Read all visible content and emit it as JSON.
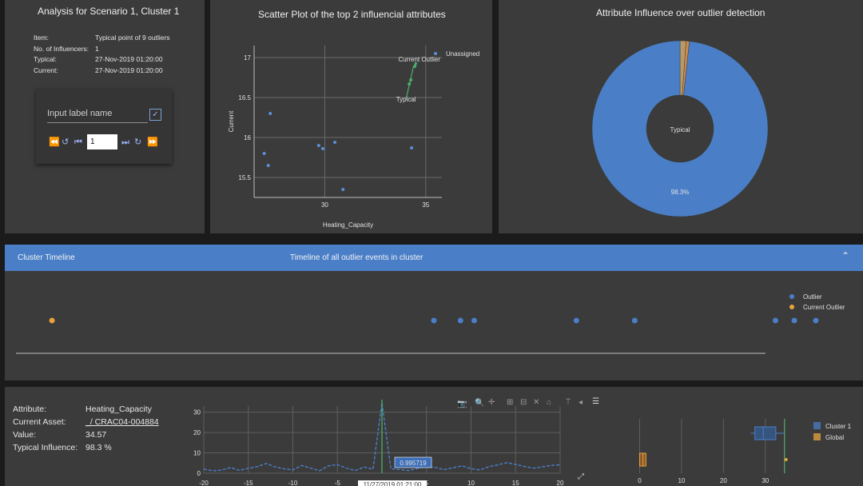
{
  "info_panel": {
    "title": "Analysis for Scenario 1, Cluster 1",
    "rows": [
      {
        "label": "Item:",
        "value": "Typical point of 9 outliers"
      },
      {
        "label": "No. of Influencers:",
        "value": "1"
      },
      {
        "label": "Typical:",
        "value": "27-Nov-2019 01:20:00"
      },
      {
        "label": "Current:",
        "value": "27-Nov-2019 01:20:00"
      }
    ],
    "label_input_placeholder": "Input label name",
    "page_input_value": "1"
  },
  "scatter": {
    "title": "Scatter Plot of the top 2 influencial attributes",
    "chart_data": {
      "type": "scatter",
      "title": "Scatter Plot of the top 2 influencial attributes",
      "xlabel": "Heating_Capacity",
      "ylabel": "Current",
      "xlim": [
        26.5,
        35.8
      ],
      "ylim": [
        15.25,
        17.15
      ],
      "xticks": [
        "30",
        "35"
      ],
      "yticks": [
        "15.5",
        "16",
        "16.5",
        "17"
      ],
      "legend_position": "top-right",
      "series": [
        {
          "name": "Unassigned",
          "color": "#5a8fd6",
          "x": [
            27.0,
            27.2,
            27.3,
            29.7,
            29.9,
            30.5,
            30.9,
            34.3
          ],
          "y": [
            15.8,
            15.65,
            16.3,
            15.9,
            15.86,
            15.94,
            15.35,
            15.87
          ]
        }
      ],
      "annotations": [
        {
          "text": "Current Outlier",
          "x": 34.6,
          "y": 16.97
        },
        {
          "text": "Typical",
          "x": 34.5,
          "y": 16.5
        }
      ]
    }
  },
  "donut": {
    "title": "Attribute Influence over outlier detection",
    "chart_data": {
      "type": "pie",
      "title": "Attribute Influence over outlier detection",
      "center_label": "Typical",
      "slices": [
        {
          "value": 98.3,
          "label": "98.3%",
          "color": "#4a7fc8"
        },
        {
          "value": 1.1,
          "label": "",
          "color": "#b89a6a"
        },
        {
          "value": 0.6,
          "label": "",
          "color": "#d08a4a"
        }
      ]
    }
  },
  "timeline": {
    "header_left": "Cluster Timeline",
    "header_center": "Timeline of all outlier events in cluster",
    "legend": [
      {
        "label": "Outlier",
        "color": "#4a7fc8"
      },
      {
        "label": "Current Outlier",
        "color": "#e8a33c"
      }
    ],
    "chart_data": {
      "type": "scatter",
      "series": [
        {
          "name": "Current Outlier",
          "color": "#e8a33c",
          "x": [
            0.055
          ],
          "y": [
            0
          ]
        },
        {
          "name": "Outlier",
          "color": "#4a7fc8",
          "x": [
            0.5,
            0.531,
            0.547,
            0.666,
            0.734,
            0.898,
            0.92,
            0.945
          ],
          "y": [
            0,
            0,
            0,
            0,
            0,
            0,
            0,
            0
          ]
        }
      ]
    }
  },
  "attribute_info": {
    "rows": [
      {
        "label": "Attribute:",
        "value": "Heating_Capacity"
      },
      {
        "label": "Current Asset:",
        "value": "_/ CRAC04-004884"
      },
      {
        "label": "Value:",
        "value": "34.57"
      },
      {
        "label": "Typical Influence:",
        "value": "98.3 %"
      }
    ]
  },
  "line_chart": {
    "chart_data": {
      "type": "line",
      "xlim": [
        -20,
        20
      ],
      "ylim": [
        0,
        33
      ],
      "xticks": [
        "-20",
        "-15",
        "-10",
        "-5",
        "0",
        "5",
        "10",
        "15",
        "20"
      ],
      "yticks": [
        "0",
        "10",
        "20",
        "30"
      ],
      "x": [
        -20,
        -19,
        -18,
        -17,
        -16,
        -15,
        -14,
        -13,
        -12,
        -11,
        -10,
        -9,
        -8,
        -7,
        -6,
        -5,
        -4,
        -3,
        -2,
        -1,
        0,
        1,
        2,
        3,
        4,
        5,
        6,
        7,
        8,
        9,
        10,
        11,
        12,
        13,
        14,
        15,
        16,
        17,
        18,
        19,
        20
      ],
      "series": [
        {
          "color": "#4a7fc8",
          "values": [
            2,
            1.2,
            1.5,
            2.8,
            1.4,
            2.4,
            3.2,
            4.8,
            3.1,
            2.2,
            1.6,
            3.8,
            2.5,
            1.2,
            3.6,
            4.2,
            2.5,
            1.3,
            3.0,
            2.0,
            34.6,
            2.2,
            1.8,
            1.3,
            2.4,
            3.3,
            2.8,
            1.8,
            2.7,
            3.6,
            2.2,
            1.6,
            3.2,
            4.1,
            5.2,
            4.3,
            3.3,
            2.5,
            3.1,
            3.8,
            4.2
          ]
        }
      ],
      "hover_value": "0.995719",
      "hover_x_label": "11/27/2019 01:21:00"
    }
  },
  "box_chart": {
    "chart_data": {
      "type": "box",
      "xlim": [
        -2,
        35
      ],
      "xticks": [
        "0",
        "10",
        "20",
        "30"
      ],
      "legend": [
        {
          "name": "Cluster 1",
          "color": "#4a7fc8"
        },
        {
          "name": "Global",
          "color": "#e8a33c"
        }
      ],
      "boxes": [
        {
          "name": "Cluster 1",
          "q1": 27.5,
          "median": 29.5,
          "q3": 32.5,
          "min": 26.5,
          "max": 34.6
        },
        {
          "name": "Global",
          "q1": 0,
          "median": 0.8,
          "q3": 1.5,
          "min": 0,
          "max": 1.5
        }
      ],
      "reference_line": 34.57,
      "current_point": 34.57
    }
  }
}
